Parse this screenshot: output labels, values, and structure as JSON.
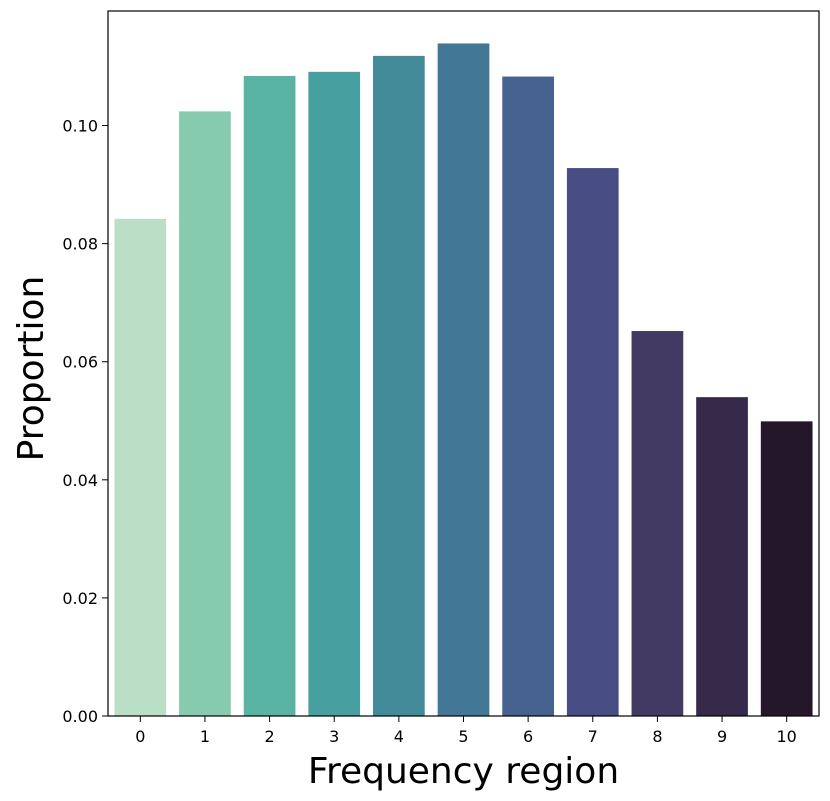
{
  "chart_data": {
    "type": "bar",
    "title": "",
    "xlabel": "Frequency region",
    "ylabel": "Proportion",
    "categories": [
      "0",
      "1",
      "2",
      "3",
      "4",
      "5",
      "6",
      "7",
      "8",
      "9",
      "10"
    ],
    "values": [
      0.0842,
      0.1024,
      0.1084,
      0.1091,
      0.1118,
      0.1139,
      0.1083,
      0.0928,
      0.0652,
      0.054,
      0.0499
    ],
    "ylim": [
      0,
      0.1194
    ],
    "yticks": [
      "0.00",
      "0.02",
      "0.04",
      "0.06",
      "0.08",
      "0.10"
    ],
    "ytick_values": [
      0,
      0.02,
      0.04,
      0.06,
      0.08,
      0.1
    ],
    "grid": false,
    "legend": "none",
    "colors": [
      "#bbdec7",
      "#87cbae",
      "#5ab4a4",
      "#489f9f",
      "#438b99",
      "#427795",
      "#46628f",
      "#484e84",
      "#423a63",
      "#36294a",
      "#24172a"
    ]
  }
}
